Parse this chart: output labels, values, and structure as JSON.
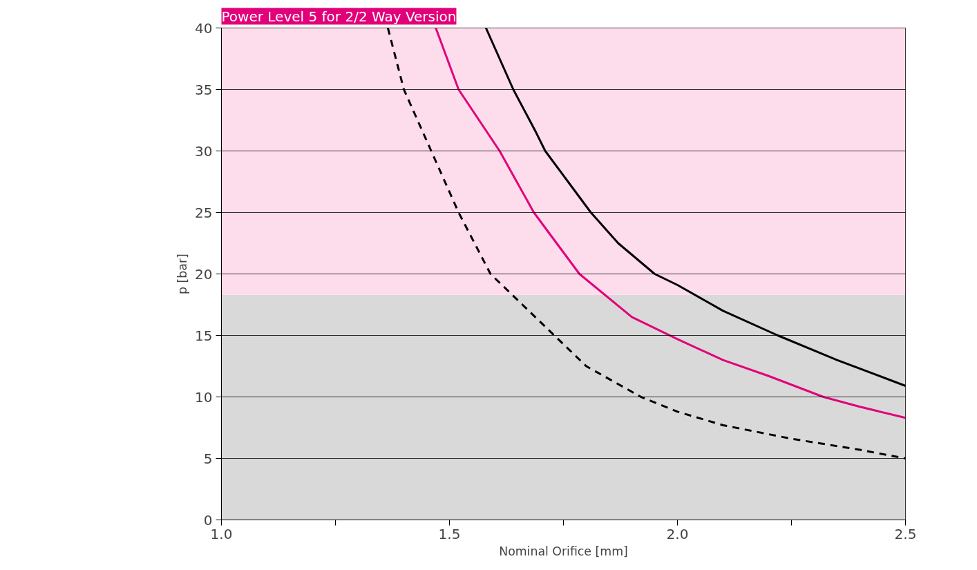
{
  "chart_data": {
    "type": "line",
    "title": "Power Level 5 for 2/2 Way Version",
    "xlabel": "Nominal Orifice [mm]",
    "ylabel": "p [bar]",
    "xlim": [
      1.0,
      2.5
    ],
    "ylim": [
      0,
      40
    ],
    "xticks": [
      {
        "value": 1.0,
        "label": "1.0"
      },
      {
        "value": 1.25,
        "label": null
      },
      {
        "value": 1.5,
        "label": "1.5"
      },
      {
        "value": 1.75,
        "label": null
      },
      {
        "value": 2.0,
        "label": "2.0"
      },
      {
        "value": 2.25,
        "label": null
      },
      {
        "value": 2.5,
        "label": "2.5"
      }
    ],
    "yticks": [
      0,
      5,
      10,
      15,
      20,
      25,
      30,
      35,
      40
    ],
    "grid": "y",
    "line_style": "solid",
    "marker": "none",
    "bands": [
      {
        "axis": "y",
        "from": 0,
        "to": 18.3,
        "label": null,
        "color": "#d9d9d9"
      },
      {
        "axis": "y",
        "from": 18.3,
        "to": 40,
        "label": null,
        "color": "#fddcec"
      }
    ],
    "series": [
      {
        "color": "#000000",
        "x": [
          1.58,
          1.64,
          1.69,
          1.71,
          1.76,
          1.81,
          1.87,
          1.95,
          2.0,
          2.1,
          2.22,
          2.35,
          2.5
        ],
        "values": [
          40,
          35,
          31.5,
          30,
          27.5,
          25,
          22.5,
          20,
          19.1,
          17,
          15,
          13,
          10.9
        ]
      },
      {
        "color": "#e2007a",
        "x": [
          1.47,
          1.52,
          1.61,
          1.685,
          1.785,
          1.9,
          2.0,
          2.1,
          2.2,
          2.32,
          2.4,
          2.5
        ],
        "values": [
          40,
          35,
          30,
          25,
          20,
          16.5,
          14.7,
          13,
          11.7,
          10,
          9.2,
          8.3
        ]
      },
      {
        "color": "#000000",
        "line_style": "dashed",
        "x": [
          1.365,
          1.4,
          1.46,
          1.52,
          1.59,
          1.66,
          1.73,
          1.8,
          1.92,
          2.0,
          2.1,
          2.25,
          2.4,
          2.5
        ],
        "values": [
          40,
          35,
          30,
          25,
          20,
          17.5,
          15,
          12.5,
          10,
          8.8,
          7.7,
          6.6,
          5.7,
          5.0
        ]
      }
    ]
  }
}
